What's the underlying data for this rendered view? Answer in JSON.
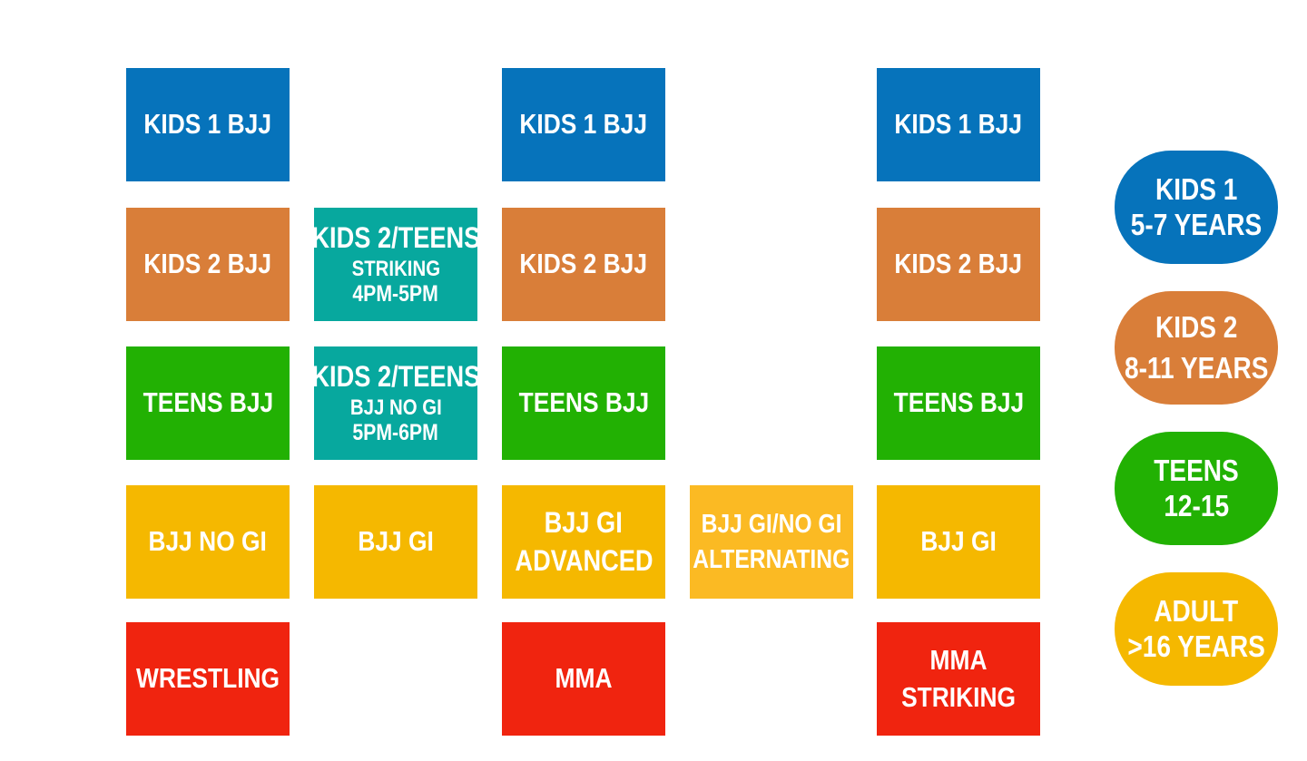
{
  "colors": {
    "kids1": "#0673bb",
    "kids2": "#d97e39",
    "teens": "#22b103",
    "kids_teens": "#07a89e",
    "adult": "#f5b800",
    "adult_alt": "#fbba23",
    "striking": "#f0240f"
  },
  "schedule": {
    "col1": {
      "kids1": "KIDS 1 BJJ",
      "kids2": "KIDS 2 BJJ",
      "teens": "TEENS BJJ",
      "adult": "BJJ NO GI",
      "striking": "WRESTLING"
    },
    "col2": {
      "kt1": {
        "line1": "KIDS 2/TEENS",
        "line2": "STRIKING",
        "line3": "4PM-5PM"
      },
      "kt2": {
        "line1": "KIDS 2/TEENS",
        "line2": "BJJ NO GI",
        "line3": "5PM-6PM"
      },
      "adult": "BJJ GI"
    },
    "col3": {
      "kids1": "KIDS 1 BJJ",
      "kids2": "KIDS 2 BJJ",
      "teens": "TEENS BJJ",
      "adult": {
        "line1": "BJJ GI",
        "line2": "ADVANCED"
      },
      "striking": "MMA"
    },
    "col4": {
      "adult": {
        "line1": "BJJ GI/NO GI",
        "line2": "ALTERNATING"
      }
    },
    "col5": {
      "kids1": "KIDS 1 BJJ",
      "kids2": "KIDS 2 BJJ",
      "teens": "TEENS BJJ",
      "adult": "BJJ GI",
      "striking": {
        "line1": "MMA",
        "line2": "STRIKING"
      }
    }
  },
  "legend": [
    {
      "line1": "KIDS 1",
      "line2": "5-7 YEARS"
    },
    {
      "line1": "KIDS 2",
      "line2": "8-11 YEARS"
    },
    {
      "line1": "TEENS",
      "line2": "12-15"
    },
    {
      "line1": "ADULT",
      "line2": ">16 YEARS"
    }
  ]
}
